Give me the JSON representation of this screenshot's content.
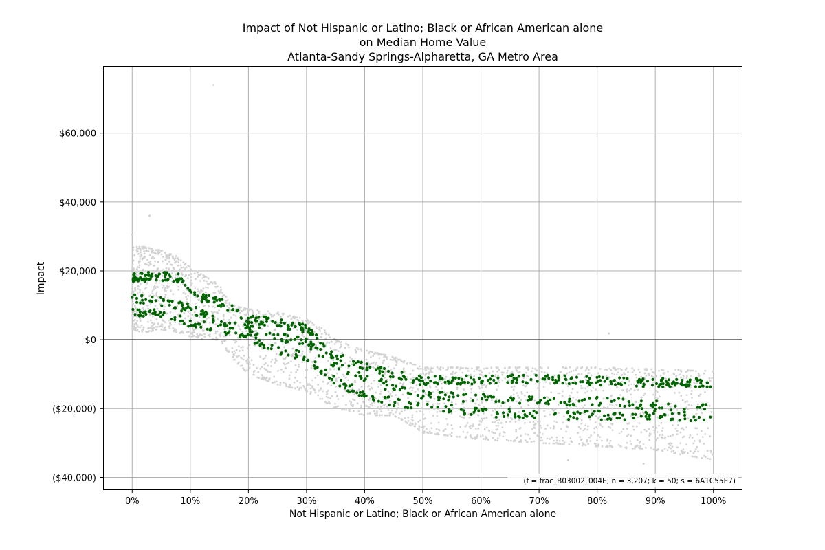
{
  "chart_data": {
    "type": "scatter",
    "title_lines": [
      "Impact of Not Hispanic or Latino; Black or African American alone",
      "on Median Home Value",
      "Atlanta-Sandy Springs-Alpharetta, GA Metro Area"
    ],
    "xlabel": "Not Hispanic or Latino; Black or African American alone",
    "ylabel": "Impact",
    "xlim": [
      -0.05,
      1.05
    ],
    "ylim": [
      -43500,
      79500
    ],
    "x_ticks": [
      0,
      0.1,
      0.2,
      0.3,
      0.4,
      0.5,
      0.6,
      0.7,
      0.8,
      0.9,
      1.0
    ],
    "x_tick_labels": [
      "0%",
      "10%",
      "20%",
      "30%",
      "40%",
      "50%",
      "60%",
      "70%",
      "80%",
      "90%",
      "100%"
    ],
    "y_ticks": [
      -40000,
      -20000,
      0,
      20000,
      40000,
      60000
    ],
    "y_tick_labels": [
      "($40,000)",
      "($20,000)",
      "$0",
      "$20,000",
      "$40,000",
      "$60,000"
    ],
    "grid": true,
    "zero_line": 0,
    "annotation": "(f = frac_B03002_004E; n = 3,207; k = 50; s = 6A1C55E7)",
    "annotation_position": "bottom-right",
    "series": [
      {
        "role": "bootstrap-samples",
        "color": "#d3d3d3",
        "envelope": {
          "x": [
            0,
            0.02,
            0.05,
            0.08,
            0.1,
            0.13,
            0.15,
            0.17,
            0.2,
            0.25,
            0.3,
            0.33,
            0.35,
            0.4,
            0.45,
            0.5,
            0.6,
            0.7,
            0.8,
            0.9,
            1.0
          ],
          "upper": [
            27000,
            27000,
            26000,
            24000,
            21000,
            18000,
            16000,
            10000,
            9000,
            8000,
            6000,
            3000,
            0,
            -3000,
            -5000,
            -8000,
            -8000,
            -8000,
            -8000,
            -8500,
            -9000
          ],
          "lower": [
            3000,
            2000,
            3000,
            2000,
            1000,
            0,
            0,
            -5000,
            -10000,
            -13000,
            -15000,
            -18000,
            -20000,
            -22000,
            -22000,
            -27000,
            -29000,
            -30000,
            -31000,
            -32000,
            -35000
          ]
        },
        "outliers": [
          {
            "x": 0.14,
            "y": 74000
          },
          {
            "x": 0.03,
            "y": 36000
          },
          {
            "x": 0.82,
            "y": 1800
          },
          {
            "x": 0.0,
            "y": 30500
          },
          {
            "x": 0.75,
            "y": -35000
          },
          {
            "x": 0.88,
            "y": -36000
          }
        ]
      },
      {
        "role": "model-estimate",
        "color": "#006400",
        "bands": [
          {
            "x": [
              0,
              0.05,
              0.08,
              0.1,
              0.12,
              0.15,
              0.2,
              0.25,
              0.3,
              0.33,
              0.35,
              0.4,
              0.45,
              0.5,
              0.6,
              0.7,
              0.8,
              0.9,
              1.0
            ],
            "y": [
              18000,
              18500,
              18000,
              13000,
              12000,
              11000,
              6000,
              5000,
              3000,
              -2000,
              -5000,
              -8000,
              -10000,
              -12000,
              -11500,
              -11500,
              -12000,
              -12500,
              -12500
            ]
          },
          {
            "x": [
              0,
              0.05,
              0.1,
              0.15,
              0.2,
              0.25,
              0.3,
              0.35,
              0.4,
              0.45,
              0.5,
              0.6,
              0.7,
              0.8,
              0.9,
              1.0
            ],
            "y": [
              12000,
              11000,
              9000,
              5000,
              3000,
              1000,
              -1000,
              -7000,
              -11000,
              -14000,
              -16000,
              -17000,
              -17500,
              -18000,
              -19000,
              -19500
            ]
          },
          {
            "x": [
              0,
              0.05,
              0.1,
              0.15,
              0.2,
              0.25,
              0.3,
              0.35,
              0.4,
              0.45,
              0.5,
              0.6,
              0.7,
              0.8,
              0.9,
              1.0
            ],
            "y": [
              8000,
              7500,
              5000,
              3000,
              1000,
              -3000,
              -5000,
              -12000,
              -16000,
              -18000,
              -19000,
              -21000,
              -22000,
              -22000,
              -22000,
              -22500
            ]
          }
        ]
      }
    ]
  }
}
